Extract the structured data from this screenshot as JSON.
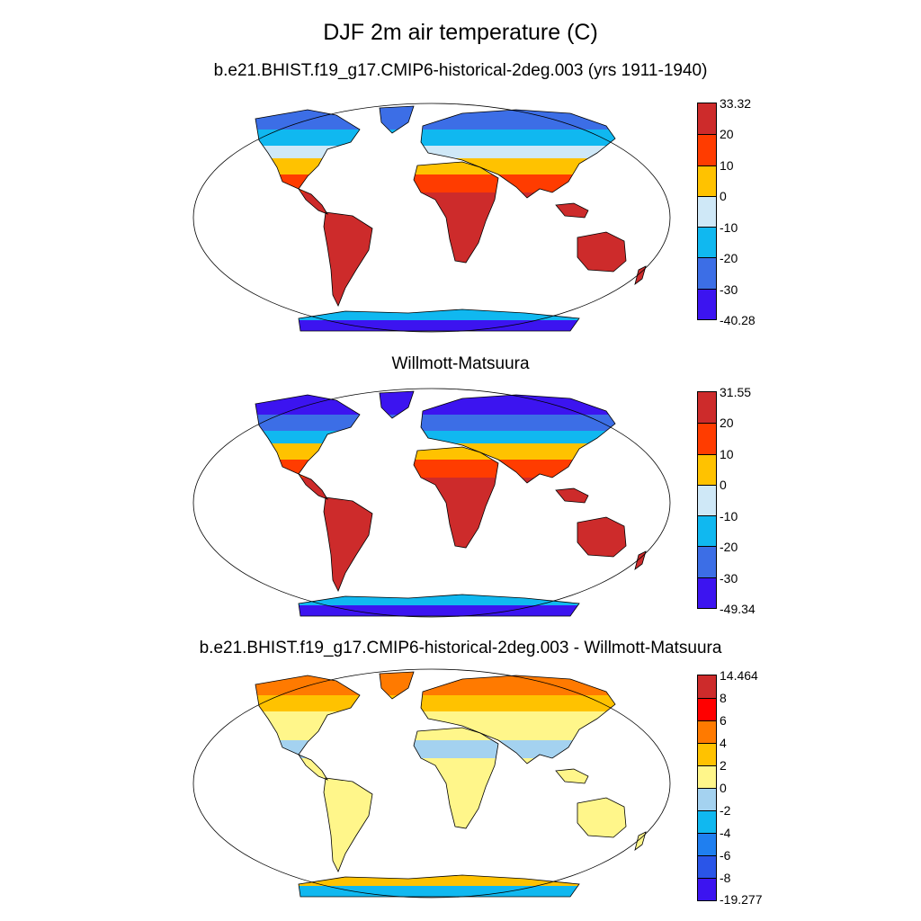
{
  "title": "DJF 2m air temperature (C)",
  "panels": [
    {
      "id": "model",
      "title": "b.e21.BHIST.f19_g17.CMIP6-historical-2deg.003 (yrs 1911-1940)",
      "colorbar": {
        "colors": [
          "#cd2b2b",
          "#ff3c00",
          "#ffc200",
          "#cfe8f7",
          "#10b8f0",
          "#3c6ee6",
          "#3c14f0"
        ],
        "labels": [
          "33.32",
          "20",
          "10",
          "0",
          "-10",
          "-20",
          "-30",
          "-40.28"
        ]
      },
      "zones": {
        "arctic": "#3c6ee6",
        "boreal": "#10b8f0",
        "cold": "#cfe8f7",
        "mild": "#ffc200",
        "warm": "#ff3c00",
        "hot": "#cd2b2b",
        "antarctic": "#10b8f0",
        "antarctic_inner": "#3c14f0"
      }
    },
    {
      "id": "obs",
      "title": "Willmott-Matsuura",
      "colorbar": {
        "colors": [
          "#cd2b2b",
          "#ff3c00",
          "#ffc200",
          "#cfe8f7",
          "#10b8f0",
          "#3c6ee6",
          "#3c14f0"
        ],
        "labels": [
          "31.55",
          "20",
          "10",
          "0",
          "-10",
          "-20",
          "-30",
          "-49.34"
        ]
      },
      "zones": {
        "arctic": "#3c14f0",
        "boreal": "#3c6ee6",
        "cold": "#10b8f0",
        "mild": "#ffc200",
        "warm": "#ff3c00",
        "hot": "#cd2b2b",
        "antarctic": "#10b8f0",
        "antarctic_inner": "#3c14f0"
      }
    },
    {
      "id": "diff",
      "title": "b.e21.BHIST.f19_g17.CMIP6-historical-2deg.003 - Willmott-Matsuura",
      "colorbar": {
        "colors": [
          "#cd2b2b",
          "#ff0000",
          "#ff7a00",
          "#ffc200",
          "#fff68a",
          "#a4d2f0",
          "#10b8f0",
          "#1f7ff0",
          "#2a55e8",
          "#3c14f0"
        ],
        "labels": [
          "14.464",
          "8",
          "6",
          "4",
          "2",
          "0",
          "-2",
          "-4",
          "-6",
          "-8",
          "-19.277"
        ]
      },
      "zones": {
        "arctic": "#ff7a00",
        "boreal": "#ffc200",
        "cold": "#fff68a",
        "mild": "#fff68a",
        "warm": "#a4d2f0",
        "hot": "#fff68a",
        "antarctic": "#ffc200",
        "antarctic_inner": "#10b8f0"
      }
    }
  ]
}
